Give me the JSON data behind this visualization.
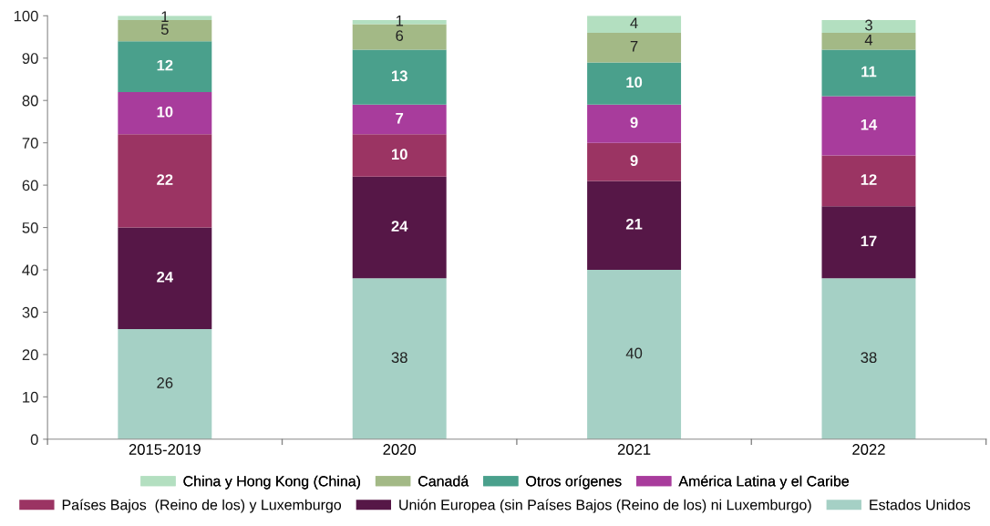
{
  "chart_data": {
    "type": "bar",
    "stacked": true,
    "data_labels": true,
    "legend": "bottom",
    "grid": false,
    "categories": [
      "2015-2019",
      "2020",
      "2021",
      "2022"
    ],
    "ylim": [
      0,
      100
    ],
    "yticks": [
      0,
      10,
      20,
      30,
      40,
      50,
      60,
      70,
      80,
      90,
      100
    ],
    "series": [
      {
        "name": "Estados Unidos",
        "color": "#a5d0c5",
        "values": [
          26,
          38,
          40,
          38
        ]
      },
      {
        "name": "Unión Europea (sin Países Bajos (Reino de los) ni Luxemburgo)",
        "color": "#561747",
        "values": [
          24,
          24,
          21,
          17
        ]
      },
      {
        "name": "Países Bajos  (Reino de los) y Luxemburgo",
        "color": "#9b3463",
        "values": [
          22,
          10,
          9,
          12
        ]
      },
      {
        "name": "América Latina y el Caribe",
        "color": "#a83c9c",
        "values": [
          10,
          7,
          9,
          14
        ]
      },
      {
        "name": "Otros orígenes",
        "color": "#4aa08c",
        "values": [
          12,
          13,
          10,
          11
        ]
      },
      {
        "name": "Canadá",
        "color": "#a3b986",
        "values": [
          5,
          6,
          7,
          4
        ]
      },
      {
        "name": "China y Hong Kong (China)",
        "color": "#b3dfc0",
        "values": [
          1,
          1,
          4,
          3
        ]
      }
    ]
  }
}
